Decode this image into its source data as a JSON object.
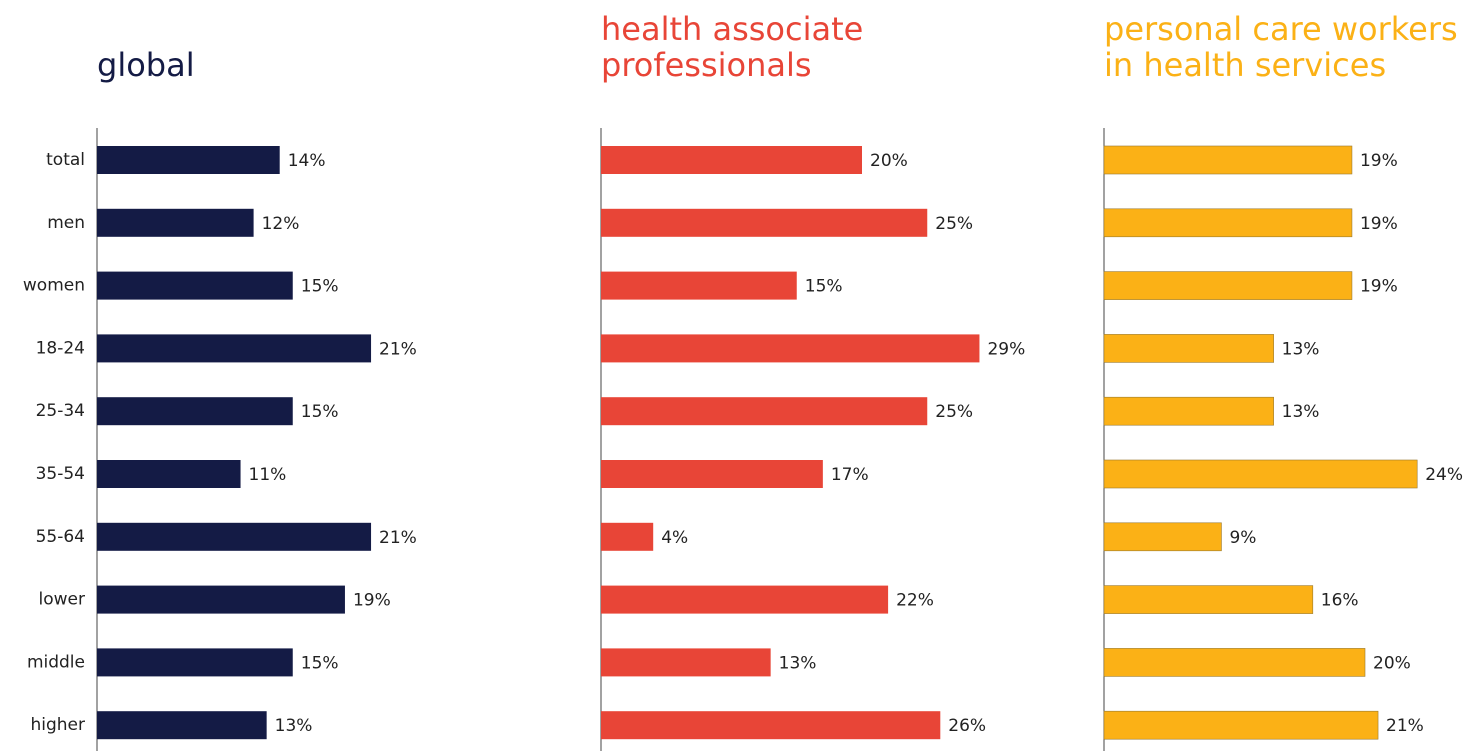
{
  "chart_data": [
    {
      "type": "bar",
      "orientation": "horizontal",
      "title": [
        "global"
      ],
      "color": "#141b45",
      "categories": [
        "total",
        "men",
        "women",
        "18-24",
        "25-34",
        "35-54",
        "55-64",
        "lower",
        "middle",
        "higher"
      ],
      "values": [
        14,
        12,
        15,
        21,
        15,
        11,
        21,
        19,
        15,
        13
      ],
      "value_labels": [
        "14%",
        "12%",
        "15%",
        "21%",
        "15%",
        "11%",
        "21%",
        "19%",
        "15%",
        "13%"
      ],
      "xlim": [
        0,
        30
      ]
    },
    {
      "type": "bar",
      "orientation": "horizontal",
      "title": [
        "health associate",
        "professionals"
      ],
      "color": "#e84537",
      "categories": [
        null,
        null,
        null,
        null,
        null,
        null,
        null,
        null,
        null,
        null
      ],
      "values": [
        20,
        25,
        15,
        29,
        25,
        17,
        4,
        22,
        13,
        26
      ],
      "value_labels": [
        "20%",
        "25%",
        "15%",
        "29%",
        "25%",
        "17%",
        "4%",
        "22%",
        "13%",
        "26%"
      ],
      "xlim": [
        0,
        30
      ]
    },
    {
      "type": "bar",
      "orientation": "horizontal",
      "title": [
        "personal care workers",
        "in health services"
      ],
      "color": "#fbb116",
      "categories": [
        null,
        null,
        null,
        null,
        null,
        null,
        null,
        null,
        null,
        null
      ],
      "values": [
        19,
        19,
        19,
        13,
        13,
        24,
        9,
        16,
        20,
        21
      ],
      "value_labels": [
        "19%",
        "19%",
        "19%",
        "13%",
        "13%",
        "24%",
        "9%",
        "16%",
        "20%",
        "21%"
      ],
      "xlim": [
        0,
        30
      ]
    }
  ]
}
